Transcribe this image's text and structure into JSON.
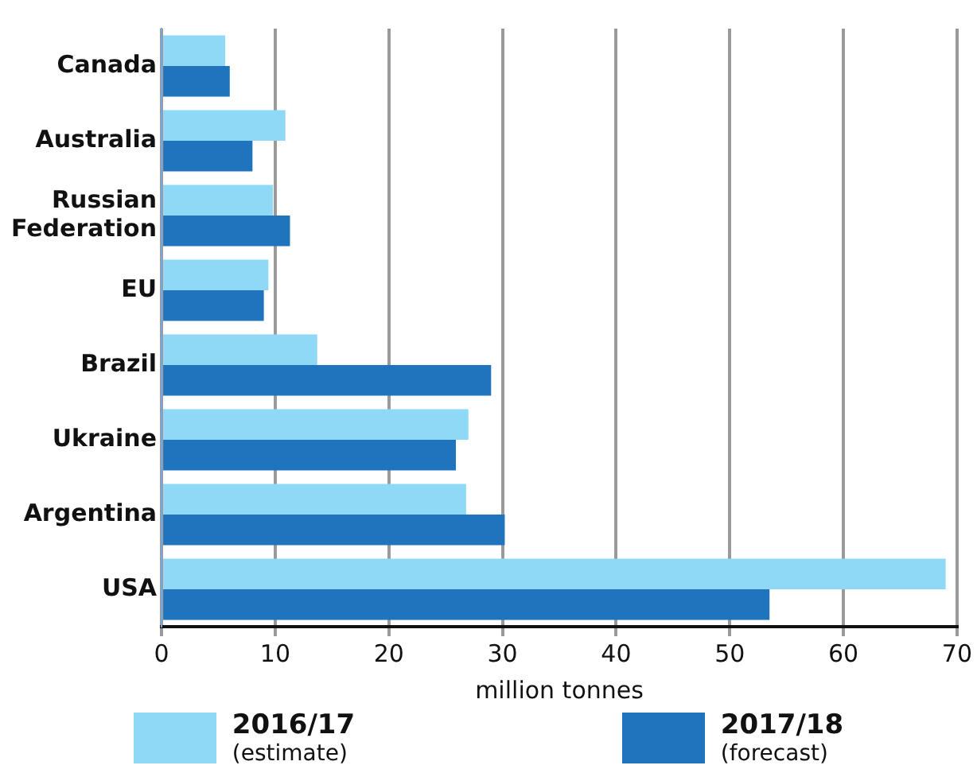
{
  "chart_data": {
    "type": "bar",
    "orientation": "horizontal",
    "xlabel": "million tonnes",
    "categories": [
      "Canada",
      "Australia",
      "Russian\nFederation",
      "EU",
      "Brazil",
      "Ukraine",
      "Argentina",
      "USA"
    ],
    "series": [
      {
        "name": "2016/17\n(estimate)",
        "color": "#8fd9f7",
        "values": [
          5.6,
          10.9,
          9.8,
          9.4,
          13.7,
          27.0,
          26.8,
          69.0
        ]
      },
      {
        "name": "2017/18\n(forecast)",
        "color": "#1f74bd",
        "values": [
          6.0,
          8.0,
          11.3,
          9.0,
          29.0,
          25.9,
          30.2,
          53.5
        ]
      }
    ],
    "xlim": [
      0,
      70
    ],
    "xticks": [
      0,
      10,
      20,
      30,
      40,
      50,
      60,
      70
    ],
    "grid": "x",
    "legend": "bottom"
  }
}
